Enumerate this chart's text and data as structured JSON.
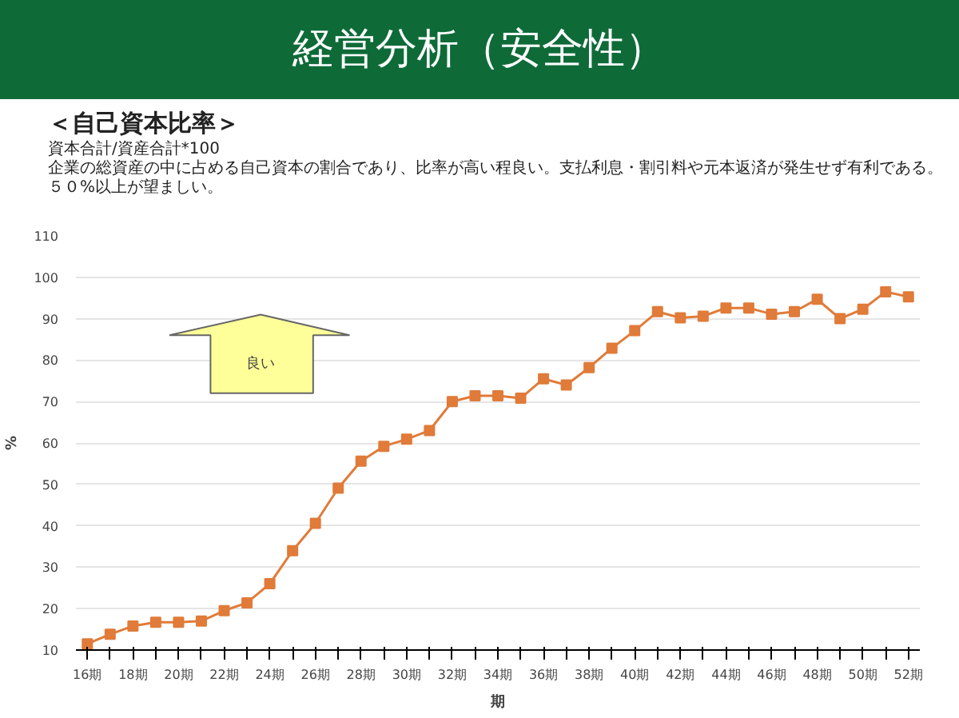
{
  "chart_data": {
    "type": "line",
    "title": "経営分析（安全性）",
    "subtitle": "＜自己資本比率＞",
    "annotations": [
      "資本合計/資産合計*100",
      "企業の総資産の中に占める自己資本の割合であり、比率が高い程良い。支払利息・割引料や元本返済が発生せず有利である。５０%以上が望ましい。",
      "良い"
    ],
    "xlabel": "期",
    "ylabel": "%",
    "categories": [
      "16期",
      null,
      "18期",
      null,
      "20期",
      null,
      "22期",
      null,
      "24期",
      null,
      "26期",
      null,
      "28期",
      null,
      "30期",
      null,
      "32期",
      null,
      "34期",
      null,
      "36期",
      null,
      "38期",
      null,
      "40期",
      null,
      "42期",
      null,
      "44期",
      null,
      "46期",
      null,
      "48期",
      null,
      "50期",
      null,
      "52期"
    ],
    "series": [
      {
        "color": "#e07b39",
        "values": [
          11.5,
          13.8,
          15.8,
          16.7,
          16.7,
          17,
          19.5,
          21.4,
          26,
          34,
          40.6,
          49.1,
          55.6,
          59.2,
          60.9,
          63,
          70,
          71.4,
          71.4,
          70.8,
          75.5,
          74,
          78.2,
          82.9,
          87.1,
          91.7,
          90.2,
          90.6,
          92.6,
          92.6,
          91.1,
          91.7,
          94.7,
          90,
          92.3,
          96.5,
          95.3
        ]
      }
    ],
    "ylim": [
      10,
      110
    ],
    "yticks": [
      10,
      20,
      30,
      40,
      50,
      60,
      70,
      80,
      90,
      100,
      110
    ],
    "grid": "y",
    "marker": "square",
    "line_style": "solid"
  }
}
